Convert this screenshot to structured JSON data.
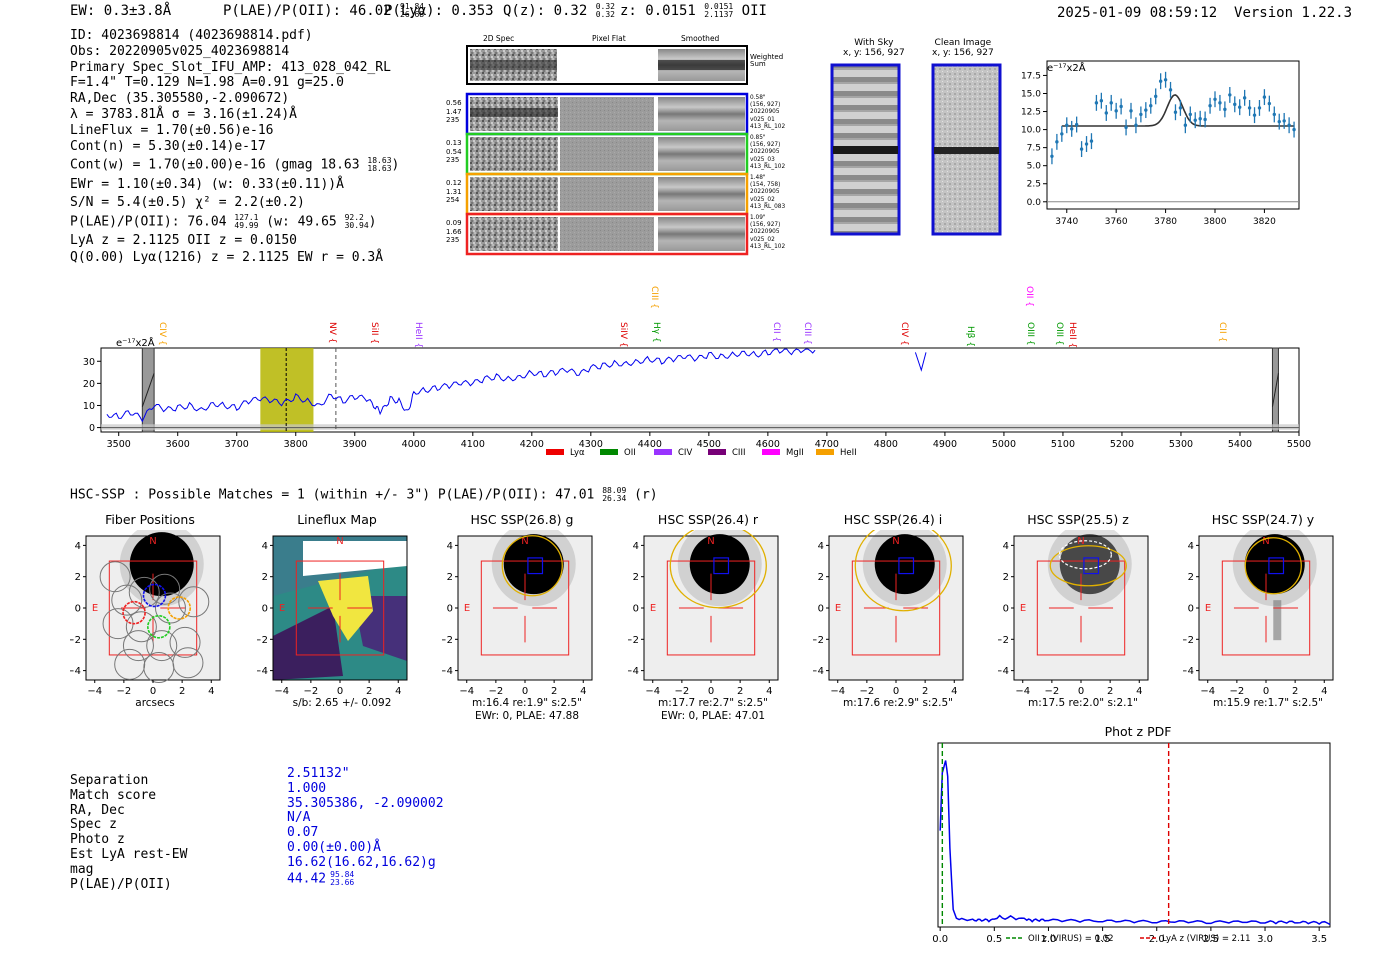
{
  "header": {
    "ew": "EW: 0.3±3.8Å",
    "plae_label": "P(LAE)/P(OII): 46.02",
    "plae_hi": "91.84",
    "plae_lo": "26.68",
    "plya": "P(Lyα): 0.353",
    "qz_label": "Q(z): 0.32",
    "qz_hi": "0.32",
    "qz_lo": "0.32",
    "z_label": "z: 0.0151",
    "z_hi": "0.0151",
    "z_lo": "2.1137",
    "line_name": "OII",
    "timestamp": "2025-01-09 08:59:12",
    "version": "Version 1.22.3"
  },
  "info": {
    "id": "ID: 4023698814 (4023698814.pdf)",
    "obs": "Obs: 20220905v025_4023698814",
    "primary": "Primary Spec_Slot_IFU_AMP: 413_028_042_RL",
    "params": "F=1.4\"  T=0.129  N=1.98  A=0.91  g=25.0",
    "radec": "RA,Dec (35.305580,-2.090672)",
    "lambda": "λ = 3783.81Å  σ = 3.16(±1.24)Å",
    "lineflux": "LineFlux = 1.70(±0.56)e-16",
    "contn": "Cont(n) = 5.30(±0.14)e-17",
    "contw": "Cont(w) = 1.70(±0.00)e-16 (gmag 18.63",
    "contw_hi": "18.63",
    "contw_lo": "18.63",
    "ewr": "EWr = 1.10(±0.34) (w: 0.33(±0.11))Å",
    "sn": "S/N = 5.4(±0.5)  χ² = 2.2(±0.2)",
    "plae": "P(LAE)/P(OII): 76.04",
    "plae_hi": "127.1",
    "plae_lo": "49.99",
    "plae_w": "(w: 49.65",
    "plae_w_hi": "92.2",
    "plae_w_lo": "30.94",
    "lya_z": "LyA z = 2.1125  OII z = 0.0150",
    "q": "Q(0.00) Lyα(1216) z = 2.1125  EW r = 0.3Å"
  },
  "cutouts": {
    "col_2d": "2D Spec",
    "col_flat": "Pixel Flat",
    "col_smooth": "Smoothed",
    "weighted": "Weighted Sum",
    "rows": [
      {
        "left": [
          "0.56",
          "1.47",
          "235"
        ],
        "right": [
          "0.58\"",
          "(156, 927)",
          "20220905",
          "v025_01",
          "413_RL_102"
        ],
        "color": "#0000dd"
      },
      {
        "left": [
          "0.13",
          "0.54",
          "235"
        ],
        "right": [
          "0.85\"",
          "(156, 927)",
          "20220905",
          "v025_03",
          "413_RL_102"
        ],
        "color": "#22cc22"
      },
      {
        "left": [
          "0.12",
          "1.31",
          "254"
        ],
        "right": [
          "1.48\"",
          "(154, 758)",
          "20220905",
          "v025_02",
          "413_RL_083"
        ],
        "color": "#f5a000"
      },
      {
        "left": [
          "0.09",
          "1.66",
          "235"
        ],
        "right": [
          "1.09\"",
          "(156, 927)",
          "20220905",
          "v025_02",
          "413_RL_102"
        ],
        "color": "#ee2222"
      }
    ],
    "with_sky": "With Sky",
    "with_sky_xy": "x, y: 156, 927",
    "clean": "Clean Image",
    "clean_xy": "x, y: 156, 927"
  },
  "zoom_plot": {
    "unit_label": "e⁻¹⁷x2Å",
    "xticks": [
      "3740",
      "3760",
      "3780",
      "3800",
      "3820"
    ],
    "yticks": [
      "0.0",
      "2.5",
      "5.0",
      "7.5",
      "10.0",
      "12.5",
      "15.0",
      "17.5"
    ]
  },
  "spectrum": {
    "unit_label": "e⁻¹⁷x2Å",
    "yticks": [
      "0",
      "10",
      "20",
      "30"
    ],
    "xticks": [
      "3500",
      "3600",
      "3700",
      "3800",
      "3900",
      "4000",
      "4100",
      "4200",
      "4300",
      "4400",
      "4500",
      "4600",
      "4700",
      "4800",
      "4900",
      "5000",
      "5100",
      "5200",
      "5300",
      "5400",
      "5500"
    ],
    "line_labels": [
      {
        "name": "CIV",
        "color": "#f5a000"
      },
      {
        "name": "NV",
        "color": "#dd0000"
      },
      {
        "name": "SiII",
        "color": "#dd0000"
      },
      {
        "name": "HeII",
        "color": "#9933ff"
      },
      {
        "name": "SiIV",
        "color": "#dd0000"
      },
      {
        "name": "CIII",
        "color": "#f5a000"
      },
      {
        "name": "Hγ",
        "color": "#009900"
      },
      {
        "name": "CII",
        "color": "#9933ff"
      },
      {
        "name": "CIII",
        "color": "#9933ff"
      },
      {
        "name": "CIV",
        "color": "#dd0000"
      },
      {
        "name": "Hβ",
        "color": "#009900"
      },
      {
        "name": "OII",
        "color": "#ff00ff"
      },
      {
        "name": "OIII",
        "color": "#009900"
      },
      {
        "name": "OIII",
        "color": "#009900"
      },
      {
        "name": "HeII",
        "color": "#dd0000"
      },
      {
        "name": "CII",
        "color": "#f5a000"
      }
    ],
    "legend": [
      {
        "name": "Lyα",
        "color": "#ee0000"
      },
      {
        "name": "OII",
        "color": "#008800"
      },
      {
        "name": "CIV",
        "color": "#9933ff"
      },
      {
        "name": "CIII",
        "color": "#770077"
      },
      {
        "name": "MgII",
        "color": "#ff00ff"
      },
      {
        "name": "HeII",
        "color": "#f5a000"
      }
    ]
  },
  "hsc": {
    "summary": "HSC-SSP : Possible Matches = 1 (within +/- 3\")  P(LAE)/P(OII): 47.01",
    "summary_hi": "88.09",
    "summary_lo": "26.34",
    "summary_band": "(r)",
    "ticks": [
      "−4",
      "−2",
      "0",
      "2",
      "4"
    ],
    "panels": [
      {
        "title": "Fiber Positions",
        "sub1": "arcsecs",
        "sub2": ""
      },
      {
        "title": "Lineflux Map",
        "sub1": "s/b: 2.65 +/- 0.092",
        "sub2": ""
      },
      {
        "title": "HSC SSP(26.8) g",
        "sub1": "m:16.4  re:1.9\"  s:2.5\"",
        "sub2": "EWr: 0, PLAE: 47.88"
      },
      {
        "title": "HSC SSP(26.4) r",
        "sub1": "m:17.7  re:2.7\"  s:2.5\"",
        "sub2": "EWr: 0, PLAE: 47.01"
      },
      {
        "title": "HSC SSP(26.4) i",
        "sub1": "m:17.6  re:2.9\"  s:2.5\"",
        "sub2": ""
      },
      {
        "title": "HSC SSP(25.5) z",
        "sub1": "m:17.5  re:2.0\"  s:2.1\"",
        "sub2": ""
      },
      {
        "title": "HSC SSP(24.7) y",
        "sub1": "m:15.9  re:1.7\"  s:2.5\"",
        "sub2": ""
      }
    ],
    "n_label": "N",
    "e_label": "E"
  },
  "match": {
    "labels": [
      "Separation",
      "Match score",
      "RA, Dec",
      "Spec z",
      "Photo z",
      "Est LyA rest-EW",
      "mag",
      "P(LAE)/P(OII)"
    ],
    "values": [
      "2.51132\"",
      "1.000",
      "35.305386, -2.090002",
      "N/A",
      "0.07",
      "0.00(±0.00)Å",
      "16.62(16.62,16.62)g",
      "44.42"
    ],
    "plae_hi": "95.84",
    "plae_lo": "23.66"
  },
  "chart_data": [
    {
      "type": "line",
      "title": "Emission line zoom",
      "ylabel": "e-17 x2Å",
      "xlim": [
        3732,
        3834
      ],
      "ylim": [
        -1,
        19.5
      ],
      "x": [
        3734,
        3736,
        3738,
        3740,
        3742,
        3744,
        3746,
        3748,
        3750,
        3752,
        3754,
        3756,
        3758,
        3760,
        3762,
        3764,
        3766,
        3768,
        3770,
        3772,
        3774,
        3776,
        3778,
        3780,
        3782,
        3784,
        3786,
        3788,
        3790,
        3792,
        3794,
        3796,
        3798,
        3800,
        3802,
        3804,
        3806,
        3808,
        3810,
        3812,
        3814,
        3816,
        3818,
        3820,
        3822,
        3824,
        3826,
        3828,
        3830,
        3832
      ],
      "y": [
        6.3,
        8.3,
        9.4,
        10.6,
        10.1,
        10.7,
        7.3,
        8.0,
        8.4,
        13.7,
        14.0,
        12.3,
        13.7,
        12.6,
        13.2,
        10.3,
        12.6,
        10.6,
        12.1,
        12.7,
        13.3,
        14.6,
        16.7,
        16.9,
        15.5,
        12.4,
        13.0,
        10.6,
        12.1,
        11.3,
        11.5,
        11.4,
        13.3,
        14.2,
        13.7,
        12.8,
        14.8,
        13.5,
        13.1,
        14.4,
        13.0,
        12.0,
        13.0,
        14.5,
        13.6,
        12.1,
        11.1,
        11.2,
        10.6,
        10.0
      ],
      "err": 1.1,
      "fit": {
        "continuum": 10.5,
        "center": 3783.8,
        "peak": 14.8,
        "sigma": 3.16
      },
      "xticks": [
        3740,
        3760,
        3780,
        3800,
        3820
      ],
      "yticks": [
        0.0,
        2.5,
        5.0,
        7.5,
        10.0,
        12.5,
        15.0,
        17.5
      ]
    },
    {
      "type": "line",
      "title": "Full spectrum",
      "ylabel": "e-17 x2Å",
      "xlim": [
        3470,
        5500
      ],
      "ylim": [
        -2,
        36
      ],
      "x": [
        3480,
        3500,
        3520,
        3540,
        3560,
        3580,
        3600,
        3620,
        3640,
        3660,
        3680,
        3700,
        3720,
        3740,
        3760,
        3780,
        3800,
        3820,
        3840,
        3860,
        3880,
        3900,
        3920,
        3935,
        3945,
        3960,
        3975,
        3990,
        4000,
        4020,
        4040,
        4060,
        4080,
        4100,
        4120,
        4140,
        4160,
        4180,
        4200,
        4220,
        4240,
        4260,
        4280,
        4300,
        4320,
        4340,
        4360,
        4380,
        4400,
        4420,
        4440,
        4460,
        4480,
        4500,
        4520,
        4540,
        4560,
        4580,
        4600,
        4620,
        4640,
        4660,
        4680
      ],
      "y": [
        6,
        5,
        7,
        4,
        10,
        8,
        9,
        10,
        8,
        11,
        10,
        9,
        12,
        13,
        12,
        11,
        14,
        12,
        10,
        15,
        12,
        14,
        13,
        9,
        7,
        13,
        12,
        7,
        16,
        17,
        18,
        19,
        20,
        20,
        22,
        23,
        22,
        23,
        25,
        24,
        25,
        26,
        24,
        27,
        28,
        29,
        29,
        30,
        31,
        30,
        31,
        32,
        31,
        33,
        32,
        33,
        34,
        33,
        34,
        35,
        34,
        35,
        35
      ],
      "extra_x": [
        4850,
        4860,
        4868
      ],
      "extra_y": [
        34,
        26,
        34
      ],
      "yticks": [
        0,
        10,
        20,
        30
      ],
      "xticks": [
        3500,
        3600,
        3700,
        3800,
        3900,
        4000,
        4100,
        4200,
        4300,
        4400,
        4500,
        4600,
        4700,
        4800,
        4900,
        5000,
        5100,
        5200,
        5300,
        5400,
        5500
      ],
      "highlight_band": [
        3740,
        3830
      ],
      "line_marker": 3783.8,
      "reference_marker": 3868,
      "masked_regions": [
        [
          3540,
          3560
        ],
        [
          5455,
          5465
        ]
      ]
    },
    {
      "type": "line",
      "title": "Phot z PDF",
      "xlim": [
        -0.02,
        3.6
      ],
      "ylim": [
        0,
        1.05
      ],
      "x": [
        0.0,
        0.02,
        0.05,
        0.07,
        0.09,
        0.12,
        0.15,
        0.2,
        0.3,
        0.5,
        0.55,
        0.6,
        0.65,
        0.7,
        0.75,
        0.8,
        1.0,
        1.5,
        2.0,
        2.5,
        3.0,
        3.3,
        3.6
      ],
      "y": [
        0.55,
        0.88,
        0.95,
        0.86,
        0.45,
        0.1,
        0.05,
        0.035,
        0.03,
        0.03,
        0.05,
        0.03,
        0.05,
        0.03,
        0.04,
        0.03,
        0.03,
        0.025,
        0.022,
        0.02,
        0.02,
        0.018,
        0.015
      ],
      "xticks": [
        0.0,
        0.5,
        1.0,
        1.5,
        2.0,
        2.5,
        3.0,
        3.5
      ],
      "markers": [
        {
          "label": "OII z (VIRUS) = 0.02",
          "z": 0.02,
          "color": "#008800"
        },
        {
          "label": "LyA z (VIRUS) = 2.11",
          "z": 2.11,
          "color": "#dd0000"
        }
      ]
    }
  ]
}
